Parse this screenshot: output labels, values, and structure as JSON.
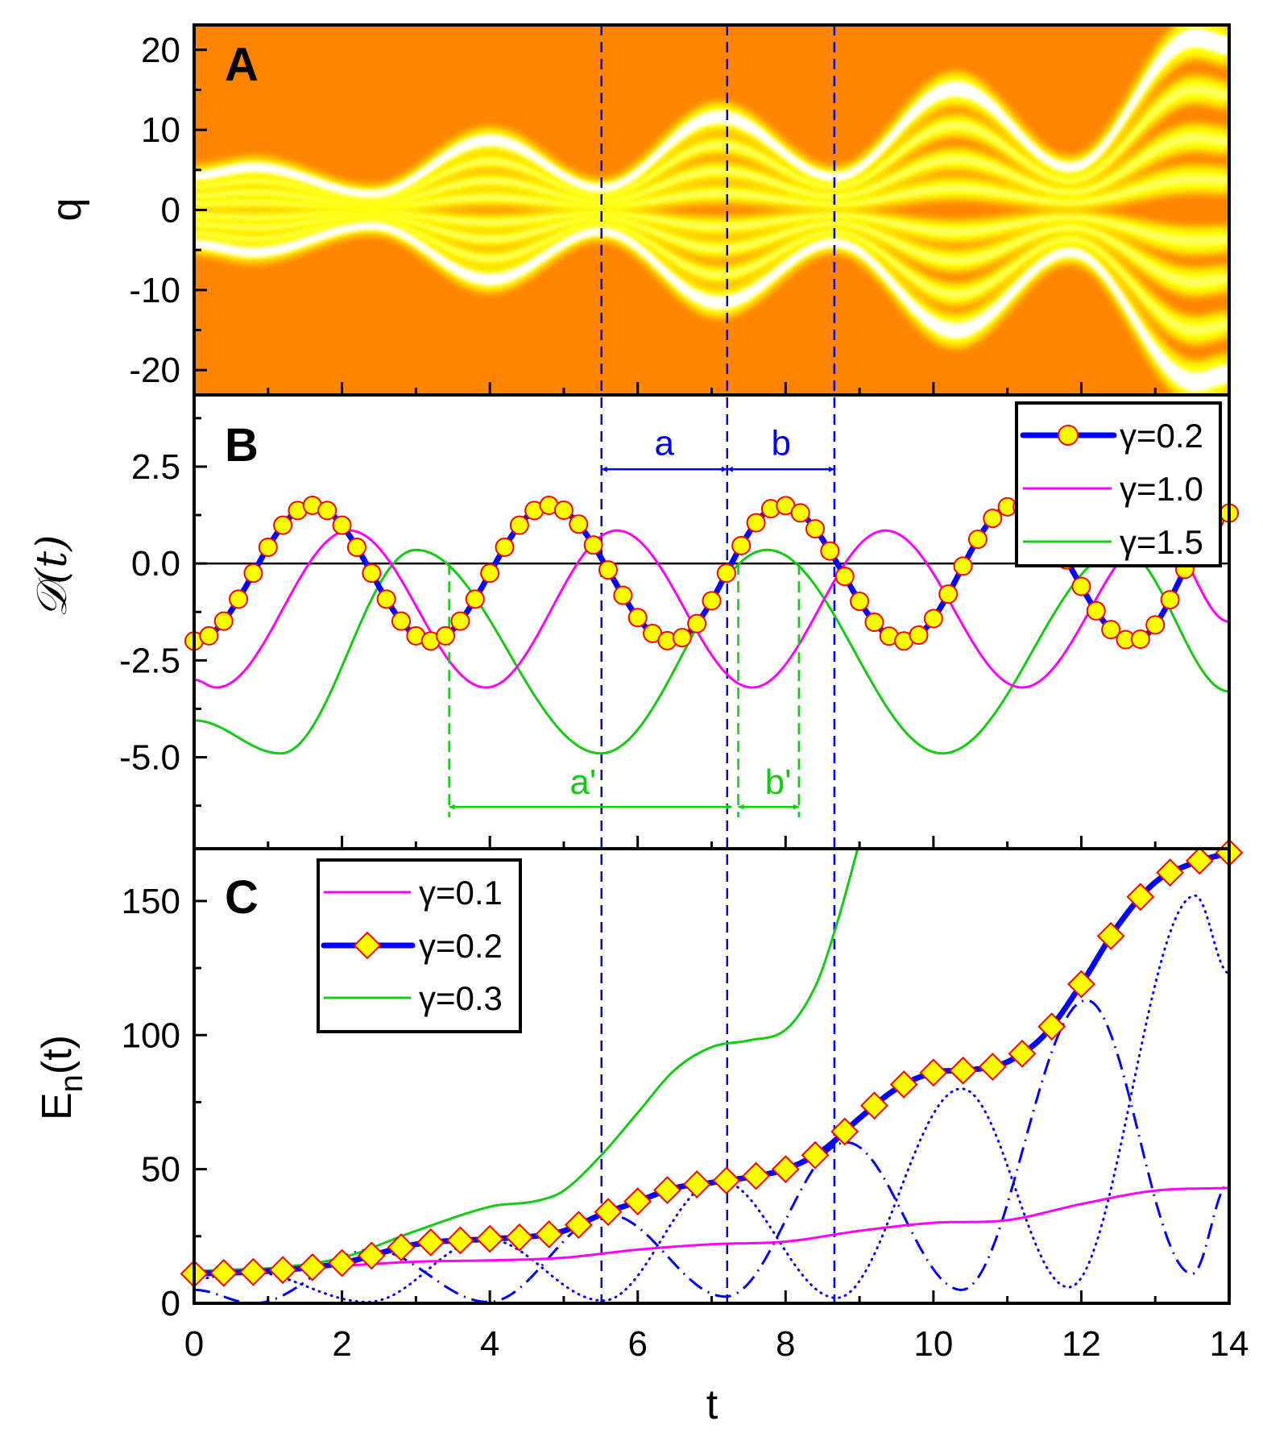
{
  "colors": {
    "orange": "#FF8400",
    "yellow": "#FFFF00",
    "white": "#FFFFFF",
    "blue": "#0000FF",
    "magenta": "#FF00FF",
    "green": "#11CC11",
    "marker_edge": "#FF0000"
  },
  "xaxis": {
    "label": "t",
    "ticks": [
      "0",
      "2",
      "4",
      "6",
      "8",
      "10",
      "12",
      "14"
    ],
    "xlim": [
      0,
      14
    ]
  },
  "vlines_t": [
    5.51,
    7.21,
    8.66
  ],
  "chart_data": [
    {
      "type": "heatmap",
      "panel": "A",
      "ylabel": "q",
      "yticks": [
        "20",
        "10",
        "0",
        "-10",
        "-20"
      ],
      "ylim": [
        -23.1,
        23.1
      ],
      "xlim": [
        0,
        14
      ],
      "envelope_outer_q": [
        [
          0,
          4.3
        ],
        [
          0.8,
          5.3
        ],
        [
          2.4,
          2.0
        ],
        [
          4.0,
          8.7
        ],
        [
          5.5,
          2.7
        ],
        [
          7.1,
          11.6
        ],
        [
          8.66,
          4.1
        ],
        [
          10.3,
          15.1
        ],
        [
          11.85,
          5.3
        ],
        [
          13.55,
          21.5
        ],
        [
          14,
          20.5
        ]
      ],
      "band_fractions": [
        0.18,
        0.42,
        0.7,
        1.0
      ]
    },
    {
      "type": "line",
      "panel": "B",
      "ylabel": "𝒟(t)",
      "yticks": [
        "2.5",
        "0.0",
        "-2.5",
        "-5.0"
      ],
      "ylim": [
        -7.36,
        4.35
      ],
      "xlim": [
        0,
        14
      ],
      "series": [
        {
          "name": "γ=0.2",
          "style": "thick-line-circles",
          "marker_step": 0.2,
          "points": [
            [
              0,
              -2.0
            ],
            [
              1.6,
              1.5
            ],
            [
              3.2,
              -2.0
            ],
            [
              4.8,
              1.5
            ],
            [
              6.45,
              -2.0
            ],
            [
              7.95,
              1.5
            ],
            [
              9.6,
              -2.0
            ],
            [
              11.1,
              1.5
            ],
            [
              12.7,
              -2.0
            ],
            [
              14,
              1.3
            ]
          ]
        },
        {
          "name": "γ=1.0",
          "style": "magenta-line",
          "points": [
            [
              0,
              -3.0
            ],
            [
              0.3,
              -3.2
            ],
            [
              2.1,
              0.85
            ],
            [
              3.95,
              -3.2
            ],
            [
              5.72,
              0.85
            ],
            [
              7.55,
              -3.2
            ],
            [
              9.35,
              0.85
            ],
            [
              11.2,
              -3.2
            ],
            [
              13.05,
              0.85
            ],
            [
              14,
              -1.5
            ]
          ]
        },
        {
          "name": "γ=1.5",
          "style": "green-line",
          "points": [
            [
              0,
              -4.05
            ],
            [
              1.17,
              -4.9
            ],
            [
              3.0,
              0.35
            ],
            [
              5.5,
              -4.9
            ],
            [
              7.75,
              0.35
            ],
            [
              10.12,
              -4.9
            ],
            [
              12.55,
              0.35
            ],
            [
              14,
              -3.3
            ]
          ]
        }
      ],
      "zero_line": 0,
      "annotations": [
        {
          "label": "a",
          "color": "blue",
          "from_t": 5.51,
          "to_t": 7.21,
          "y": 2.43,
          "label_t": 6.36,
          "label_y": 2.8
        },
        {
          "label": "b",
          "color": "blue",
          "from_t": 7.21,
          "to_t": 8.66,
          "y": 2.43,
          "label_t": 7.94,
          "label_y": 2.8
        },
        {
          "label": "a'",
          "color": "green",
          "from_t": 3.45,
          "to_t": 7.27,
          "y": -6.28,
          "label_t": 5.26,
          "label_y": -5.95
        },
        {
          "label": "b'",
          "color": "green",
          "from_t": 7.36,
          "to_t": 8.18,
          "y": -6.28,
          "label_t": 7.9,
          "label_y": -5.95
        }
      ],
      "green_guides_t": [
        3.45,
        7.36,
        8.18
      ],
      "legend": {
        "position": "top-right",
        "entries": [
          "γ=0.2",
          "γ=1.0",
          "γ=1.5"
        ]
      }
    },
    {
      "type": "line",
      "panel": "C",
      "ylabel": {
        "main": "E",
        "sub": "n",
        "tail": "(t)"
      },
      "yticks": [
        "0",
        "50",
        "100",
        "150"
      ],
      "ylim": [
        0,
        169.5
      ],
      "xlim": [
        0,
        14
      ],
      "series": [
        {
          "name": "γ=0.1",
          "style": "magenta-line",
          "points": [
            [
              0,
              12
            ],
            [
              1,
              13
            ],
            [
              2,
              14
            ],
            [
              3,
              15.5
            ],
            [
              4,
              16
            ],
            [
              5,
              17
            ],
            [
              6,
              20
            ],
            [
              7,
              22
            ],
            [
              8,
              23
            ],
            [
              9,
              27
            ],
            [
              10,
              30
            ],
            [
              11,
              31
            ],
            [
              12,
              37
            ],
            [
              13,
              42
            ],
            [
              14,
              43
            ]
          ]
        },
        {
          "name": "γ=0.2",
          "style": "thick-line-diamonds",
          "marker_step": 0.4,
          "points": [
            [
              0,
              11
            ],
            [
              1,
              12
            ],
            [
              2,
              15
            ],
            [
              3,
              22
            ],
            [
              4,
              24
            ],
            [
              4.6,
              25
            ],
            [
              5,
              27
            ],
            [
              5.5,
              33
            ],
            [
              6,
              38
            ],
            [
              6.5,
              43
            ],
            [
              7,
              45
            ],
            [
              7.5,
              47
            ],
            [
              8,
              50
            ],
            [
              8.5,
              57
            ],
            [
              9,
              69
            ],
            [
              9.5,
              80
            ],
            [
              10,
              86
            ],
            [
              10.5,
              87
            ],
            [
              11,
              90
            ],
            [
              11.5,
              100
            ],
            [
              12,
              119
            ],
            [
              12.5,
              141
            ],
            [
              13,
              157
            ],
            [
              13.5,
              164
            ],
            [
              14,
              168
            ]
          ]
        },
        {
          "name": "γ=0.3",
          "style": "green-line",
          "points": [
            [
              0,
              12
            ],
            [
              1,
              13
            ],
            [
              2,
              17
            ],
            [
              3,
              27
            ],
            [
              4,
              36
            ],
            [
              4.6,
              38
            ],
            [
              5,
              42
            ],
            [
              5.5,
              55
            ],
            [
              6,
              71
            ],
            [
              6.5,
              87
            ],
            [
              7,
              95.5
            ],
            [
              7.5,
              98
            ],
            [
              8,
              102
            ],
            [
              8.4,
              118
            ],
            [
              8.7,
              142
            ],
            [
              9.0,
              172
            ]
          ]
        },
        {
          "name": "",
          "style": "blue-dotted",
          "points": [
            [
              0,
              9
            ],
            [
              0.7,
              12
            ],
            [
              2.35,
              0.5
            ],
            [
              3.95,
              24
            ],
            [
              5.53,
              1
            ],
            [
              7.1,
              46
            ],
            [
              8.69,
              2
            ],
            [
              10.38,
              80
            ],
            [
              11.83,
              6
            ],
            [
              13.54,
              152
            ],
            [
              14,
              123
            ]
          ]
        },
        {
          "name": "",
          "style": "blue-dashdot",
          "points": [
            [
              0,
              5
            ],
            [
              0.8,
              0
            ],
            [
              2.4,
              20
            ],
            [
              3.98,
              0.5
            ],
            [
              5.6,
              33
            ],
            [
              7.19,
              2.5
            ],
            [
              8.82,
              60
            ],
            [
              10.38,
              5
            ],
            [
              12.07,
              113
            ],
            [
              13.5,
              11
            ],
            [
              14,
              45
            ]
          ]
        }
      ],
      "legend": {
        "position": "top-left",
        "entries": [
          "γ=0.1",
          "γ=0.2",
          "γ=0.3"
        ]
      }
    }
  ]
}
